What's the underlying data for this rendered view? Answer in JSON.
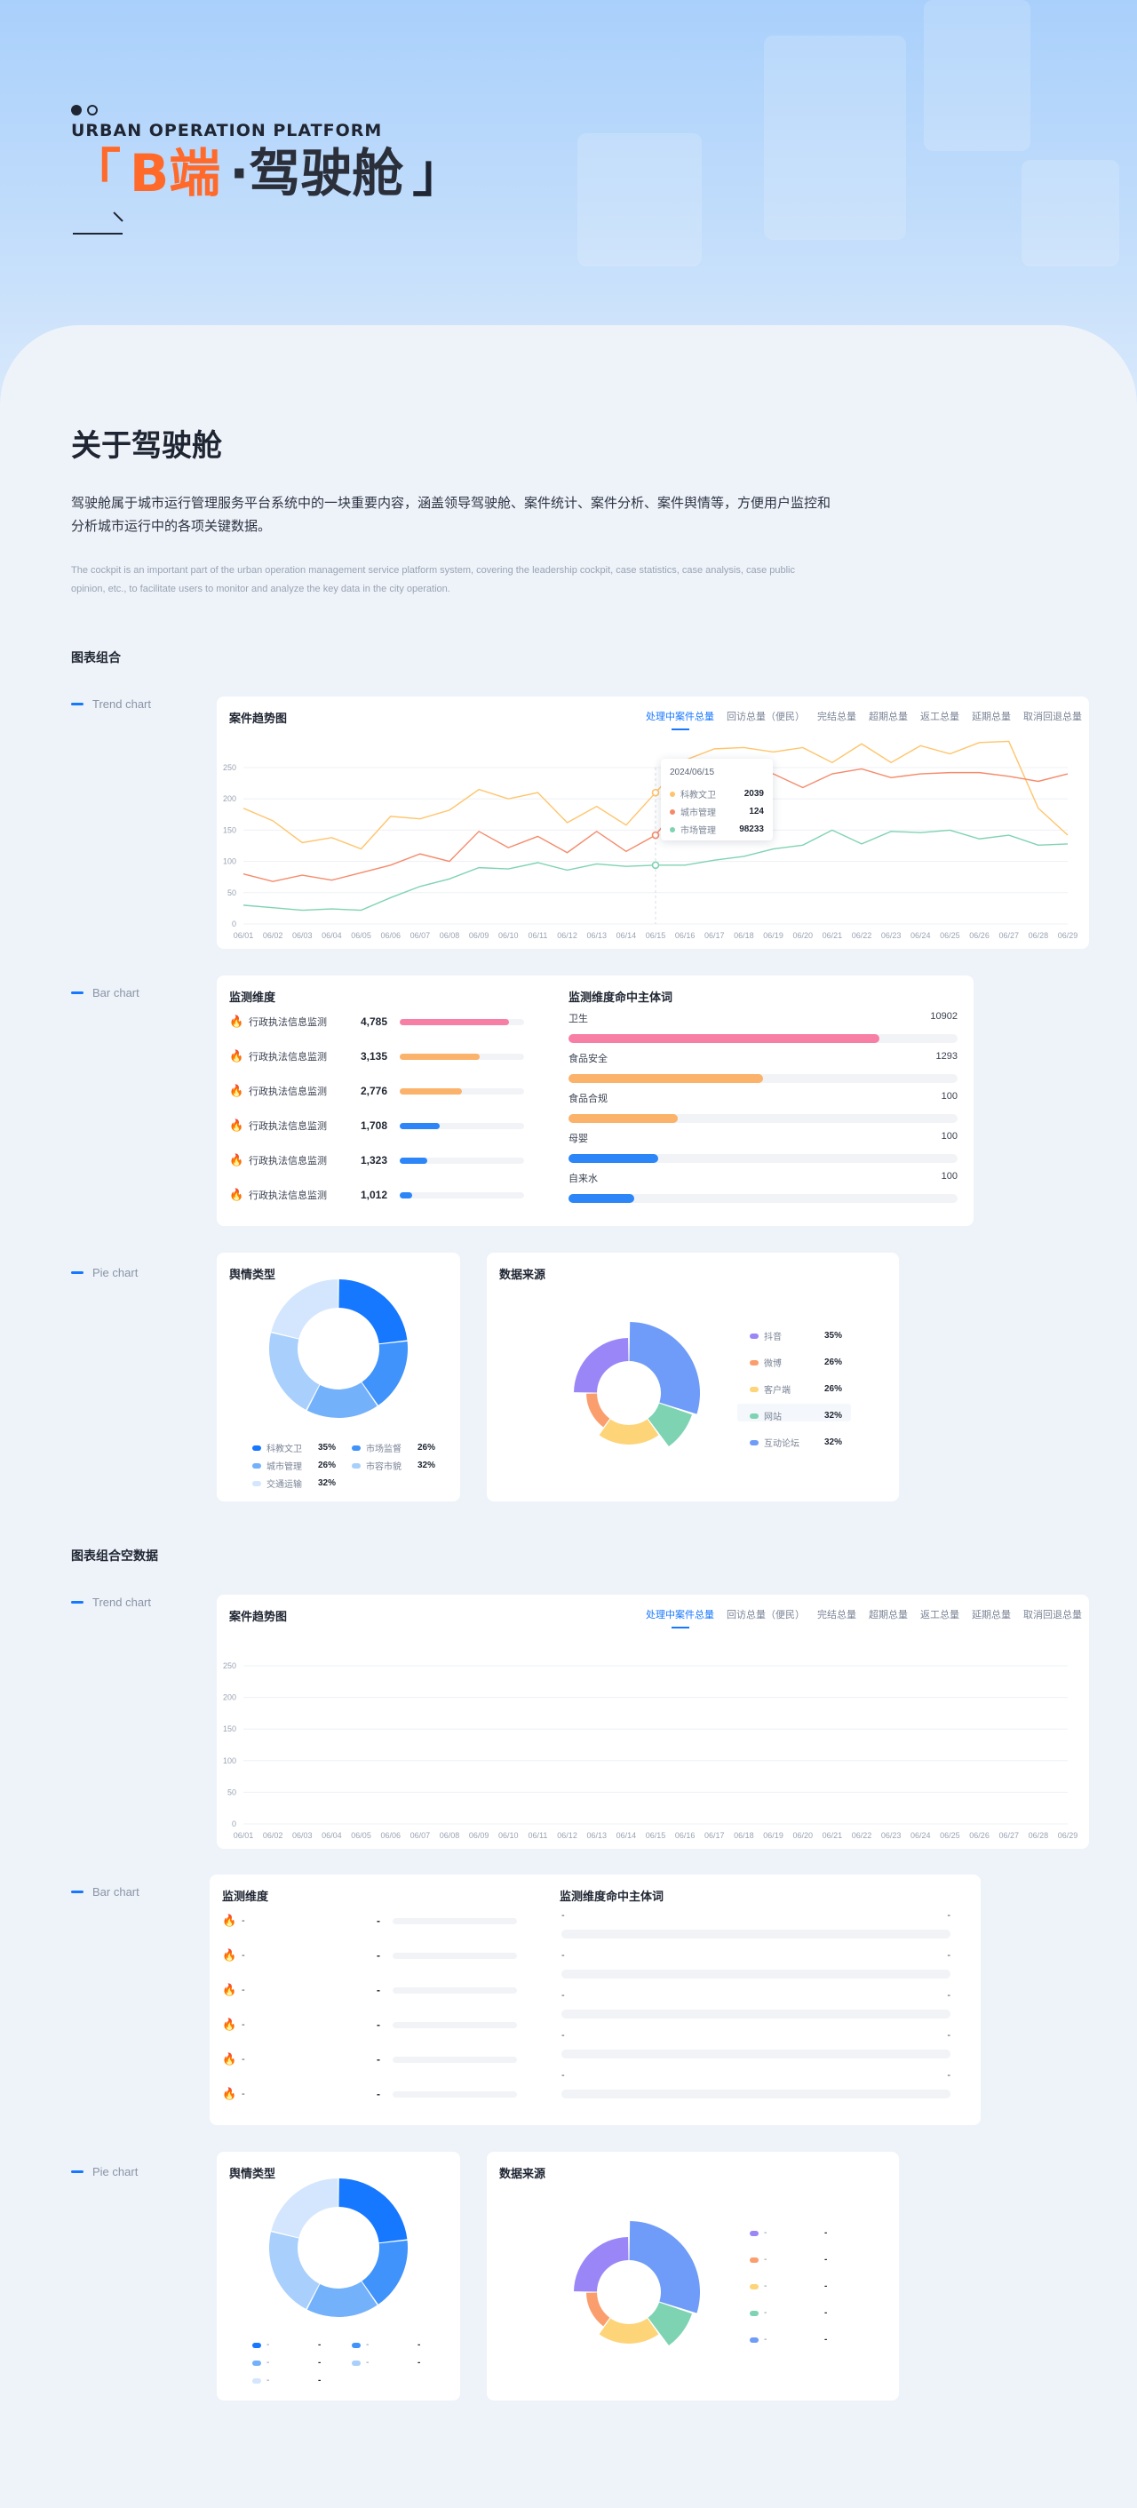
{
  "hero": {
    "eyebrow": "URBAN OPERATION PLATFORM",
    "bracket_open": "「",
    "title_accent": "B端",
    "title_rest": "·驾驶舱",
    "bracket_close": "」"
  },
  "about": {
    "title": "关于驾驶舱",
    "desc_cn": "驾驶舱属于城市运行管理服务平台系统中的一块重要内容，涵盖领导驾驶舱、案件统计、案件分析、案件舆情等，方便用户监控和分析城市运行中的各项关键数据。",
    "desc_en": "The cockpit is an important part of the urban operation management service platform system, covering the leadership cockpit, case statistics, case analysis, case public opinion, etc., to facilitate users to monitor and analyze the key data in the city operation."
  },
  "labels": {
    "trend": "Trend chart",
    "bar": "Bar chart",
    "pie": "Pie chart"
  },
  "group1": {
    "title": "图表组合"
  },
  "group2": {
    "title": "图表组合空数据"
  },
  "trend": {
    "title": "案件趋势图",
    "tabs": [
      "处理中案件总量",
      "回访总量（便民）",
      "完结总量",
      "超期总量",
      "返工总量",
      "延期总量",
      "取消回退总量"
    ],
    "active_tab": 0,
    "tooltip": {
      "date": "2024/06/15",
      "rows": [
        {
          "name": "科教文卫",
          "value": "2039"
        },
        {
          "name": "城市管理",
          "value": "124"
        },
        {
          "name": "市场管理",
          "value": "98233"
        }
      ]
    }
  },
  "chart_data": [
    {
      "type": "line",
      "title": "案件趋势图",
      "x": [
        "06/01",
        "06/02",
        "06/03",
        "06/04",
        "06/05",
        "06/06",
        "06/07",
        "06/08",
        "06/09",
        "06/10",
        "06/11",
        "06/12",
        "06/13",
        "06/14",
        "06/15",
        "06/16",
        "06/17",
        "06/18",
        "06/19",
        "06/20",
        "06/21",
        "06/22",
        "06/23",
        "06/24",
        "06/25",
        "06/26",
        "06/27",
        "06/28",
        "06/29"
      ],
      "ylim": [
        0,
        250
      ],
      "yticks": [
        0,
        50,
        100,
        150,
        200,
        250
      ],
      "grid": true,
      "series": [
        {
          "color": "#ffc46b",
          "values": [
            185,
            165,
            130,
            138,
            120,
            172,
            168,
            182,
            215,
            200,
            210,
            162,
            188,
            158,
            210,
            262,
            280,
            282,
            275,
            282,
            258,
            288,
            258,
            285,
            272,
            290,
            292,
            185,
            142
          ]
        },
        {
          "color": "#f58a6a",
          "values": [
            80,
            68,
            78,
            70,
            82,
            94,
            112,
            100,
            148,
            122,
            140,
            114,
            148,
            116,
            142,
            202,
            210,
            238,
            240,
            218,
            240,
            248,
            234,
            240,
            242,
            242,
            236,
            228,
            240
          ]
        },
        {
          "color": "#7ed3b2",
          "values": [
            30,
            26,
            22,
            24,
            22,
            42,
            60,
            72,
            90,
            88,
            98,
            86,
            96,
            92,
            94,
            94,
            102,
            108,
            120,
            126,
            150,
            128,
            148,
            146,
            150,
            136,
            142,
            126,
            128
          ]
        }
      ]
    },
    {
      "type": "bar",
      "title": "监测维度",
      "categories": [
        "行政执法信息监测",
        "行政执法信息监测",
        "行政执法信息监测",
        "行政执法信息监测",
        "行政执法信息监测",
        "行政执法信息监测"
      ],
      "values": [
        4785,
        3135,
        2776,
        1708,
        1323,
        1012
      ],
      "value_labels": [
        "4,785",
        "3,135",
        "2,776",
        "1,708",
        "1,323",
        "1,012"
      ],
      "fractions": [
        0.88,
        0.64,
        0.5,
        0.32,
        0.22,
        0.1
      ],
      "colors": [
        "#f77fa6",
        "#fbb26a",
        "#fbb26a",
        "#2c86f7",
        "#2c86f7",
        "#2c86f7"
      ],
      "flames": [
        "#f56d8e",
        "#ff8a3d",
        "#ff8a3d",
        "#1677ff",
        "#1677ff",
        "#1677ff"
      ]
    },
    {
      "type": "bar",
      "title": "监测维度命中主体词",
      "categories": [
        "卫生",
        "食品安全",
        "食品合规",
        "母婴",
        "自来水"
      ],
      "values": [
        10902,
        1293,
        100,
        100,
        100
      ],
      "fractions": [
        0.8,
        0.5,
        0.28,
        0.23,
        0.17
      ],
      "colors": [
        "#f77fa6",
        "#fbb26a",
        "#fbb26a",
        "#2c86f7",
        "#2c86f7"
      ]
    },
    {
      "type": "pie",
      "title": "舆情类型",
      "labels": [
        "科教文卫",
        "市场监督",
        "城市管理",
        "市容市貌",
        "交通运输"
      ],
      "values": [
        35,
        26,
        26,
        32,
        32
      ],
      "value_labels": [
        "35%",
        "26%",
        "26%",
        "32%",
        "32%"
      ],
      "colors": [
        "#1677ff",
        "#3f93fa",
        "#74b1fb",
        "#a9cffc",
        "#d4e6fd"
      ]
    },
    {
      "type": "pie",
      "title": "数据来源",
      "labels": [
        "抖音",
        "微博",
        "客户端",
        "网站",
        "互动论坛"
      ],
      "values": [
        35,
        26,
        26,
        32,
        32
      ],
      "value_labels": [
        "35%",
        "26%",
        "26%",
        "32%",
        "32%"
      ],
      "colors": [
        "#9b86f7",
        "#fb9e6e",
        "#fdd478",
        "#7ed3b2",
        "#6f9cf8"
      ]
    }
  ],
  "bars": {
    "left_title": "监测维度",
    "right_title": "监测维度命中主体词"
  },
  "pies": {
    "left_title": "舆情类型",
    "right_title": "数据来源"
  },
  "empty": {
    "placeholder": "-"
  }
}
